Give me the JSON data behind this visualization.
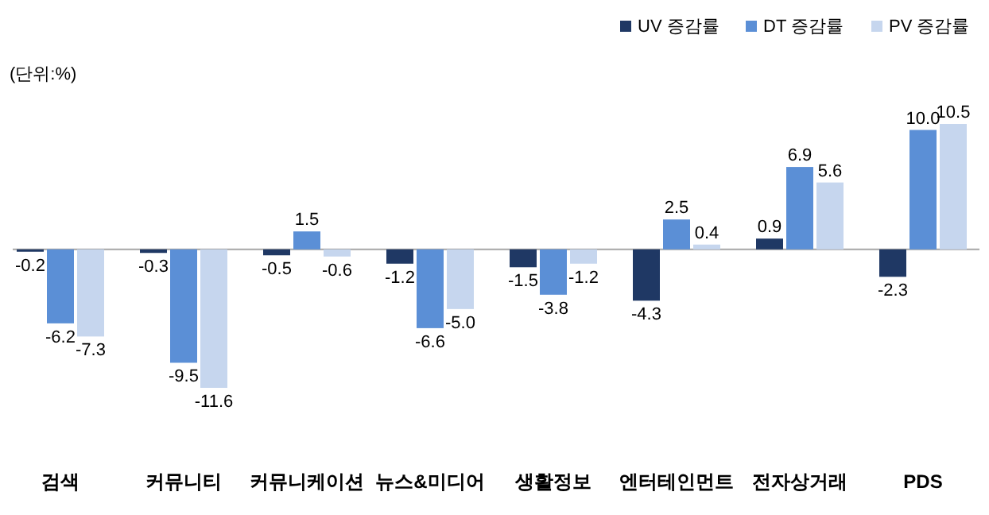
{
  "chart_data": {
    "type": "bar",
    "annotations": [
      "(단위:%)"
    ],
    "legend": "top right",
    "categories": [
      "검색",
      "커뮤니티",
      "커뮤니케이션",
      "뉴스&미디어",
      "생활정보",
      "엔터테인먼트",
      "전자상거래",
      "PDS"
    ],
    "series": [
      {
        "name": "UV 증감률",
        "color": "#1f3864",
        "values": [
          -0.2,
          -0.3,
          -0.5,
          -1.2,
          -1.5,
          -4.3,
          0.9,
          -2.3
        ],
        "value_labels": [
          "-0.2",
          "-0.3",
          "-0.5",
          "-1.2",
          "-1.5",
          "-4.3",
          "0.9",
          "-2.3"
        ]
      },
      {
        "name": "DT 증감률",
        "color": "#5b8fd6",
        "values": [
          -6.2,
          -9.5,
          1.5,
          -6.6,
          -3.8,
          2.5,
          6.9,
          10.0
        ],
        "value_labels": [
          "-6.2",
          "-9.5",
          "1.5",
          "-6.6",
          "-3.8",
          "2.5",
          "6.9",
          "10.0"
        ]
      },
      {
        "name": "PV 증감률",
        "color": "#c6d6ee",
        "values": [
          -7.3,
          -11.6,
          -0.6,
          -5.0,
          -1.2,
          0.4,
          5.6,
          10.5
        ],
        "value_labels": [
          "-7.3",
          "-11.6",
          "-0.6",
          "-5.0",
          "-1.2",
          "0.4",
          "5.6",
          "10.5"
        ]
      }
    ]
  }
}
